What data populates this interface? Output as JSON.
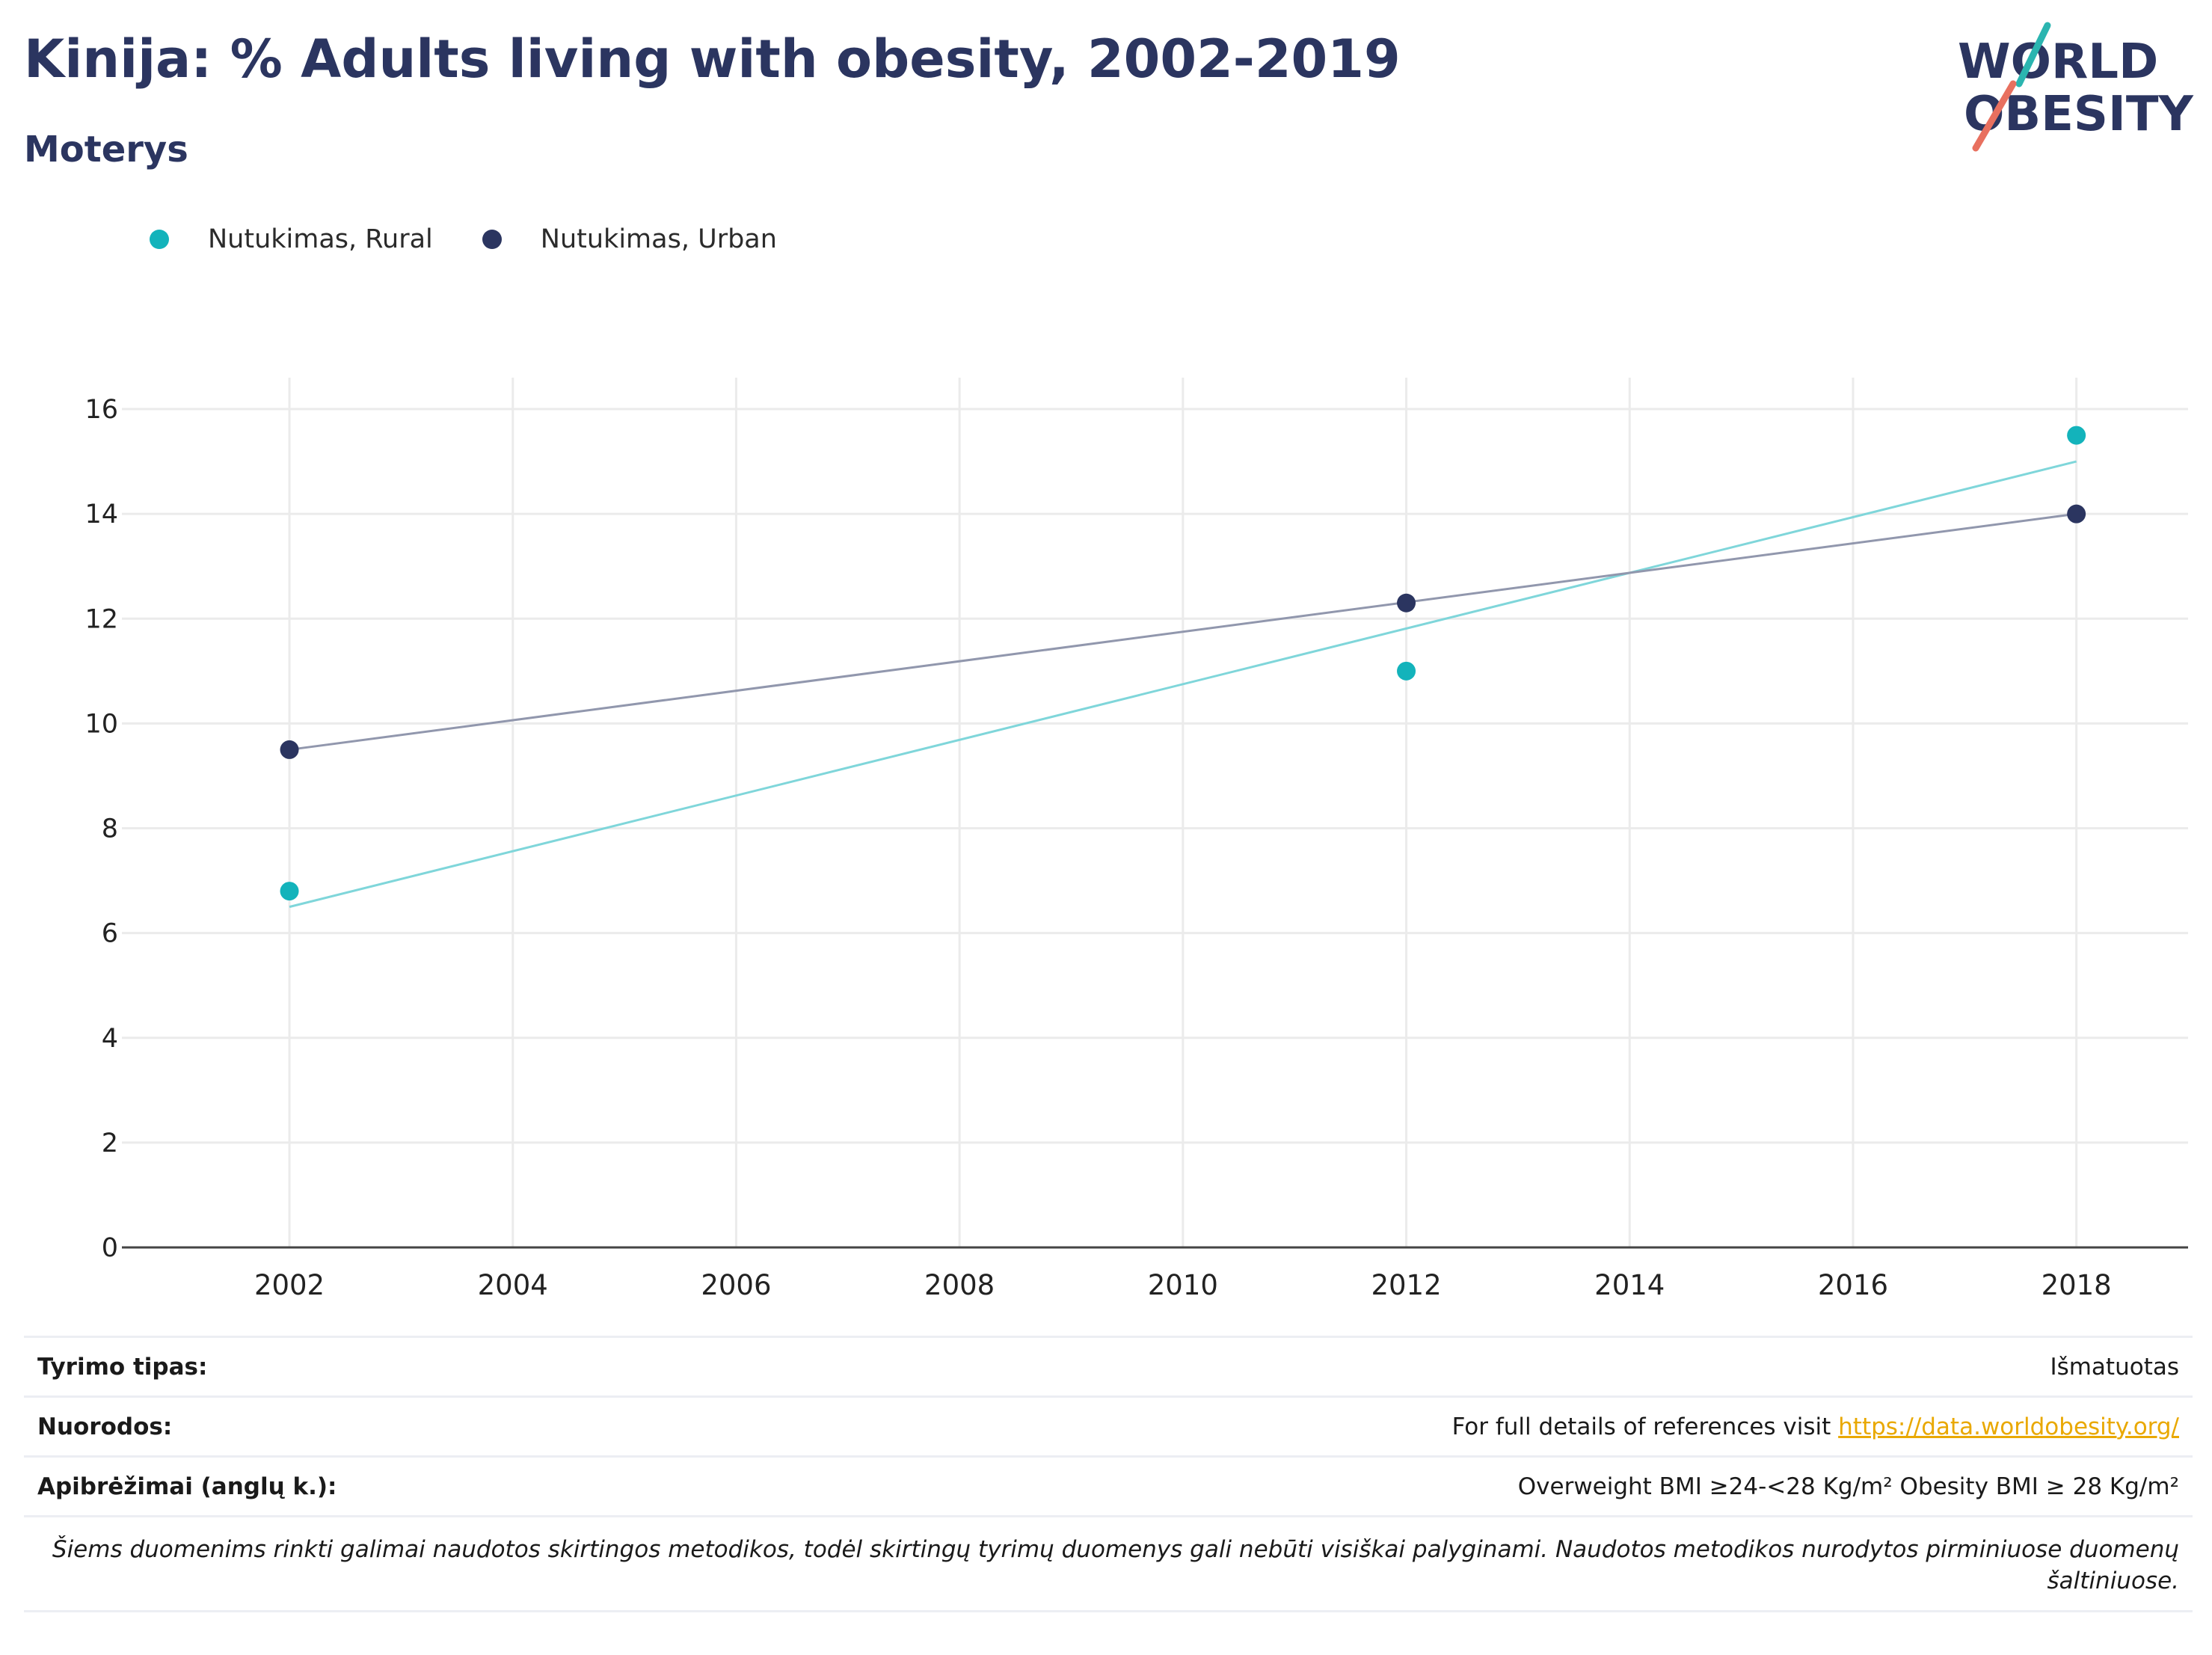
{
  "header": {
    "title": "Kinija: % Adults living with obesity, 2002-2019",
    "subtitle": "Moterys"
  },
  "logo": {
    "line1": "WORLD",
    "line2": "OBESITY",
    "accent_teal": "#2bb5b0",
    "accent_coral": "#e8705f"
  },
  "legend": [
    {
      "label": "Nutukimas, Rural",
      "color": "#13b3bb"
    },
    {
      "label": "Nutukimas, Urban",
      "color": "#2b3560"
    }
  ],
  "chart_data": {
    "type": "scatter",
    "x_ticks": [
      2002,
      2004,
      2006,
      2008,
      2010,
      2012,
      2014,
      2016,
      2018
    ],
    "y_ticks": [
      0,
      2,
      4,
      6,
      8,
      10,
      12,
      14,
      16
    ],
    "xlim": [
      2000.5,
      2019
    ],
    "ylim": [
      0,
      16.6
    ],
    "grid": true,
    "legend_position": "top-left",
    "series": [
      {
        "name": "Nutukimas, Rural",
        "color": "#13b3bb",
        "trend_color": "#7fd6da",
        "points": [
          {
            "x": 2002,
            "y": 6.8
          },
          {
            "x": 2012,
            "y": 11.0
          },
          {
            "x": 2018,
            "y": 15.5
          }
        ],
        "trendline": [
          {
            "x": 2002,
            "y": 6.5
          },
          {
            "x": 2018,
            "y": 15.0
          }
        ]
      },
      {
        "name": "Nutukimas, Urban",
        "color": "#2b3560",
        "trend_color": "#9197ad",
        "points": [
          {
            "x": 2002,
            "y": 9.5
          },
          {
            "x": 2012,
            "y": 12.3
          },
          {
            "x": 2018,
            "y": 14.0
          }
        ],
        "trendline": [
          {
            "x": 2002,
            "y": 9.5
          },
          {
            "x": 2018,
            "y": 14.0
          }
        ]
      }
    ]
  },
  "info": {
    "survey_type_label": "Tyrimo tipas:",
    "survey_type_value": "Išmatuotas",
    "references_label": "Nuorodos:",
    "references_text": "For full details of references visit ",
    "references_link": "https://data.worldobesity.org/",
    "definitions_label": "Apibrėžimai (anglų k.):",
    "definitions_value": "Overweight BMI ≥24-<28 Kg/m² Obesity BMI ≥ 28 Kg/m²",
    "note": "Šiems duomenims rinkti galimai naudotos skirtingos metodikos, todėl skirtingų tyrimų duomenys gali nebūti visiškai palyginami. Naudotos metodikos nurodytos pirminiuose duomenų šaltiniuose."
  }
}
